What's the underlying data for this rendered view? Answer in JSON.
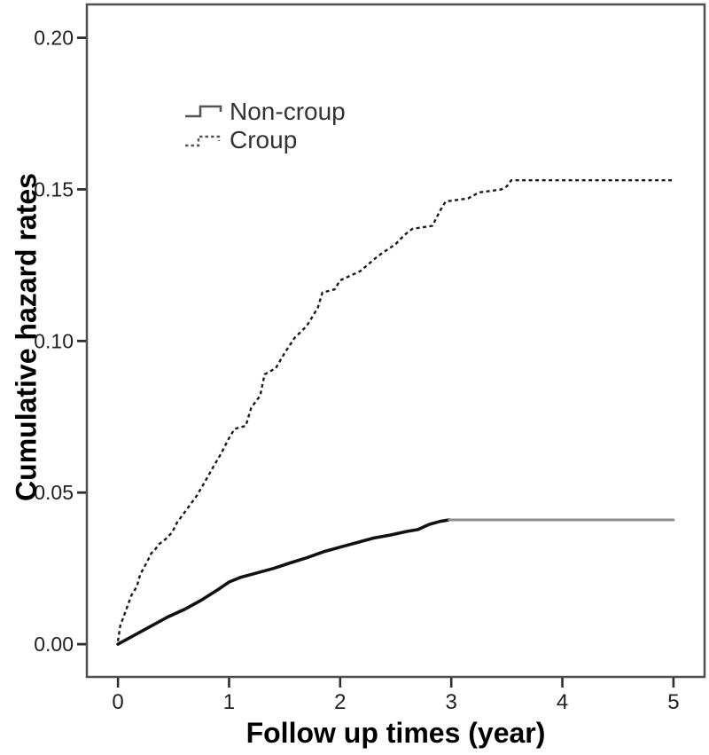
{
  "figure": {
    "background": "#ffffff",
    "border_color": "#4f4f4f",
    "tick_color": "#2e2e2e",
    "tick_label_color": "#1f1f1f"
  },
  "chart_data": {
    "type": "line",
    "subtype": "cumulative-hazard-step-curves",
    "title": "",
    "xlabel": "Follow up times (year)",
    "ylabel": "Cumulative hazard rates",
    "grid": false,
    "legend_position": "upper-left-inside",
    "xlim": [
      -0.28,
      5.28
    ],
    "ylim": [
      -0.0108,
      0.211
    ],
    "xticks": {
      "values": [
        0,
        1,
        2,
        3,
        4,
        5
      ],
      "labels": [
        "0",
        "1",
        "2",
        "3",
        "4",
        "5"
      ]
    },
    "yticks": {
      "values": [
        0,
        0.05,
        0.1,
        0.15,
        0.2
      ],
      "labels": [
        "0.00",
        "0.05",
        "0.10",
        "0.15",
        "0.20"
      ]
    },
    "series": [
      {
        "name": "Non-croup",
        "line": "solid",
        "color": "#111111",
        "plateau_value": 0.041,
        "segments": [
          {
            "color": "#111111",
            "width": 3.6,
            "dash": "",
            "points": [
              [
                0,
                0.0
              ],
              [
                0.15,
                0.003
              ],
              [
                0.3,
                0.006
              ],
              [
                0.45,
                0.009
              ],
              [
                0.6,
                0.0115
              ],
              [
                0.75,
                0.0145
              ],
              [
                0.9,
                0.018
              ],
              [
                1.0,
                0.0205
              ],
              [
                1.1,
                0.022
              ],
              [
                1.25,
                0.0235
              ],
              [
                1.4,
                0.025
              ],
              [
                1.55,
                0.0268
              ],
              [
                1.7,
                0.0285
              ],
              [
                1.85,
                0.0305
              ],
              [
                2.0,
                0.032
              ],
              [
                2.15,
                0.0335
              ],
              [
                2.3,
                0.035
              ],
              [
                2.45,
                0.036
              ],
              [
                2.6,
                0.0372
              ],
              [
                2.7,
                0.0378
              ],
              [
                2.8,
                0.0395
              ],
              [
                2.9,
                0.0405
              ],
              [
                2.98,
                0.041
              ]
            ]
          },
          {
            "color": "#8c8c8c",
            "width": 3.0,
            "dash": "",
            "points": [
              [
                2.98,
                0.041
              ],
              [
                5.0,
                0.041
              ]
            ]
          }
        ]
      },
      {
        "name": "Croup",
        "line": "dashed",
        "color": "#1a1a1a",
        "plateau_value": 0.153,
        "segments": [
          {
            "color": "#1a1a1a",
            "width": 2.4,
            "dash": "4 3.5",
            "points": [
              [
                0,
                0.001
              ],
              [
                0.02,
                0.006
              ],
              [
                0.07,
                0.011
              ],
              [
                0.12,
                0.016
              ],
              [
                0.17,
                0.019
              ],
              [
                0.2,
                0.023
              ],
              [
                0.26,
                0.027
              ],
              [
                0.3,
                0.03
              ],
              [
                0.33,
                0.031
              ],
              [
                0.37,
                0.033
              ],
              [
                0.44,
                0.035
              ],
              [
                0.49,
                0.037
              ],
              [
                0.53,
                0.04
              ],
              [
                0.59,
                0.043
              ],
              [
                0.65,
                0.046
              ],
              [
                0.71,
                0.049
              ],
              [
                0.79,
                0.054
              ],
              [
                0.85,
                0.058
              ],
              [
                0.93,
                0.063
              ],
              [
                1.0,
                0.068
              ],
              [
                1.05,
                0.071
              ],
              [
                1.15,
                0.072
              ],
              [
                1.2,
                0.078
              ],
              [
                1.28,
                0.082
              ],
              [
                1.32,
                0.089
              ],
              [
                1.42,
                0.091
              ],
              [
                1.5,
                0.096
              ],
              [
                1.59,
                0.101
              ],
              [
                1.7,
                0.105
              ],
              [
                1.8,
                0.111
              ],
              [
                1.84,
                0.116
              ],
              [
                1.95,
                0.117
              ],
              [
                2.0,
                0.12
              ],
              [
                2.18,
                0.123
              ],
              [
                2.34,
                0.128
              ],
              [
                2.5,
                0.132
              ],
              [
                2.58,
                0.135
              ],
              [
                2.65,
                0.137
              ],
              [
                2.83,
                0.138
              ],
              [
                2.9,
                0.143
              ],
              [
                2.95,
                0.146
              ],
              [
                3.15,
                0.147
              ],
              [
                3.25,
                0.149
              ],
              [
                3.45,
                0.15
              ],
              [
                3.5,
                0.151
              ],
              [
                3.54,
                0.153
              ],
              [
                5.0,
                0.153
              ]
            ]
          }
        ]
      }
    ]
  }
}
